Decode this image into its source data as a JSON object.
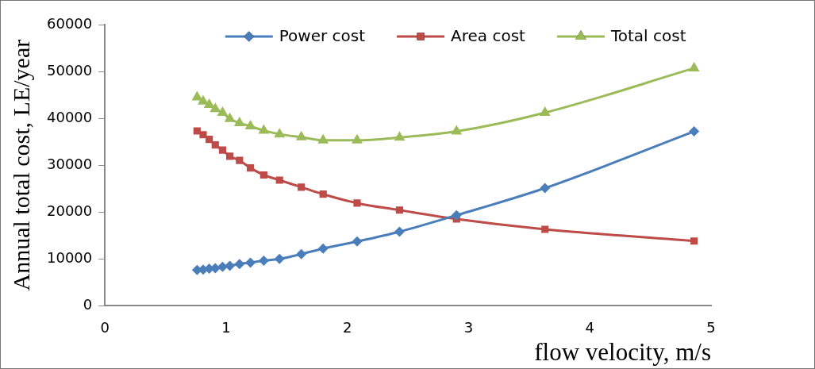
{
  "chart_data": {
    "type": "line",
    "xlabel": "flow velocity, m/s",
    "ylabel": "Annual total cost, LE/year",
    "xlim": [
      0,
      5
    ],
    "xticks": [
      0,
      1,
      2,
      3,
      4,
      5
    ],
    "ylim": [
      0,
      60000
    ],
    "yticks": [
      0,
      10000,
      20000,
      30000,
      40000,
      50000,
      60000
    ],
    "grid": false,
    "legend": "top",
    "x": [
      0.76,
      0.81,
      0.86,
      0.91,
      0.97,
      1.03,
      1.11,
      1.2,
      1.31,
      1.44,
      1.62,
      1.8,
      2.08,
      2.43,
      2.9,
      3.63,
      4.86
    ],
    "series": [
      {
        "name": "Power cost",
        "color": "#4a7ebb",
        "marker": "diamond",
        "values": [
          7600,
          7700,
          7900,
          8000,
          8300,
          8500,
          8900,
          9200,
          9600,
          10000,
          11000,
          12200,
          13700,
          15800,
          19300,
          25100,
          37200
        ]
      },
      {
        "name": "Area cost",
        "color": "#be4b48",
        "marker": "square",
        "values": [
          37300,
          36500,
          35500,
          34300,
          33200,
          31900,
          31000,
          29400,
          27900,
          26800,
          25300,
          23800,
          21900,
          20400,
          18500,
          16300,
          13800
        ]
      },
      {
        "name": "Total cost",
        "color": "#9bbb59",
        "marker": "triangle",
        "values": [
          44500,
          43600,
          42900,
          42000,
          41200,
          39900,
          39000,
          38300,
          37400,
          36600,
          36000,
          35300,
          35300,
          35900,
          37200,
          41200,
          50700
        ]
      }
    ]
  }
}
